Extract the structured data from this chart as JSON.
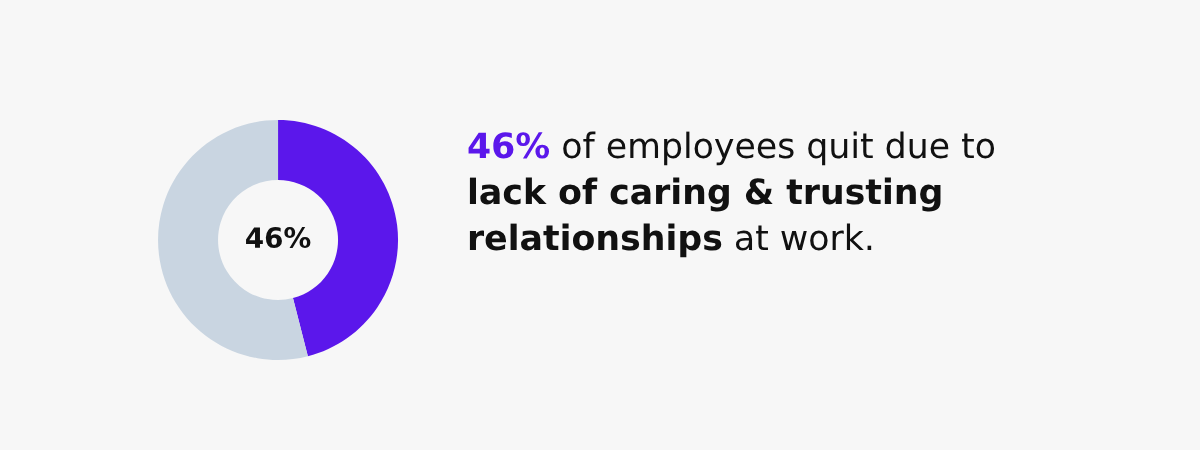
{
  "chart_data": {
    "type": "donut",
    "categories": [
      null,
      null
    ],
    "values": [
      46,
      54
    ],
    "colors": [
      "#5b17eb",
      "#c9d5e1"
    ],
    "value_labels": [
      "46%",
      null
    ],
    "legend": false,
    "annotations": [
      "46%",
      " of employees quit due to",
      "lack of caring & trusting",
      "relationships",
      " at work."
    ]
  }
}
